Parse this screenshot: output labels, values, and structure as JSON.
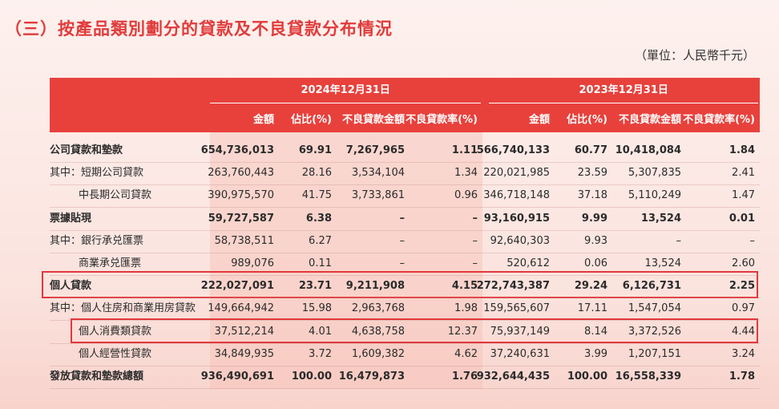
{
  "header": {
    "title": "（三）按產品類別劃分的貸款及不良貸款分布情況",
    "unit": "（單位：人民幣千元）"
  },
  "table": {
    "year_headers": [
      "2024年12月31日",
      "2023年12月31日"
    ],
    "column_headers": [
      "金額",
      "佔比(%)",
      "不良貸款金額",
      "不良貸款率(%)",
      "金額",
      "佔比(%)",
      "不良貸款金額",
      "不良貸款率(%)"
    ],
    "rows": [
      [
        "公司貸款和墊款",
        "654,736,013",
        "69.91",
        "7,267,965",
        "1.11",
        "566,740,133",
        "60.77",
        "10,418,084",
        "1.84"
      ],
      [
        "其中：短期公司貸款",
        "263,760,443",
        "28.16",
        "3,534,104",
        "1.34",
        "220,021,985",
        "23.59",
        "5,307,835",
        "2.41"
      ],
      [
        "中長期公司貸款",
        "390,975,570",
        "41.75",
        "3,733,861",
        "0.96",
        "346,718,148",
        "37.18",
        "5,110,249",
        "1.47"
      ],
      [
        "票據貼現",
        "59,727,587",
        "6.38",
        "–",
        "–",
        "93,160,915",
        "9.99",
        "13,524",
        "0.01"
      ],
      [
        "其中：銀行承兑匯票",
        "58,738,511",
        "6.27",
        "–",
        "–",
        "92,640,303",
        "9.93",
        "–",
        "–"
      ],
      [
        "商業承兑匯票",
        "989,076",
        "0.11",
        "–",
        "–",
        "520,612",
        "0.06",
        "13,524",
        "2.60"
      ],
      [
        "個人貸款",
        "222,027,091",
        "23.71",
        "9,211,908",
        "4.15",
        "272,743,387",
        "29.24",
        "6,126,731",
        "2.25"
      ],
      [
        "其中：個人住房和商業用房貸款",
        "149,664,942",
        "15.98",
        "2,963,768",
        "1.98",
        "159,565,607",
        "17.11",
        "1,547,054",
        "0.97"
      ],
      [
        "個人消費類貸款",
        "37,512,214",
        "4.01",
        "4,638,758",
        "12.37",
        "75,937,149",
        "8.14",
        "3,372,526",
        "4.44"
      ],
      [
        "個人經營性貸款",
        "34,849,935",
        "3.72",
        "1,609,382",
        "4.62",
        "37,240,631",
        "3.99",
        "1,207,151",
        "3.24"
      ],
      [
        "發放貸款和墊款總額",
        "936,490,691",
        "100.00",
        "16,479,873",
        "1.76",
        "932,644,435",
        "100.00",
        "16,558,339",
        "1.78"
      ]
    ]
  }
}
